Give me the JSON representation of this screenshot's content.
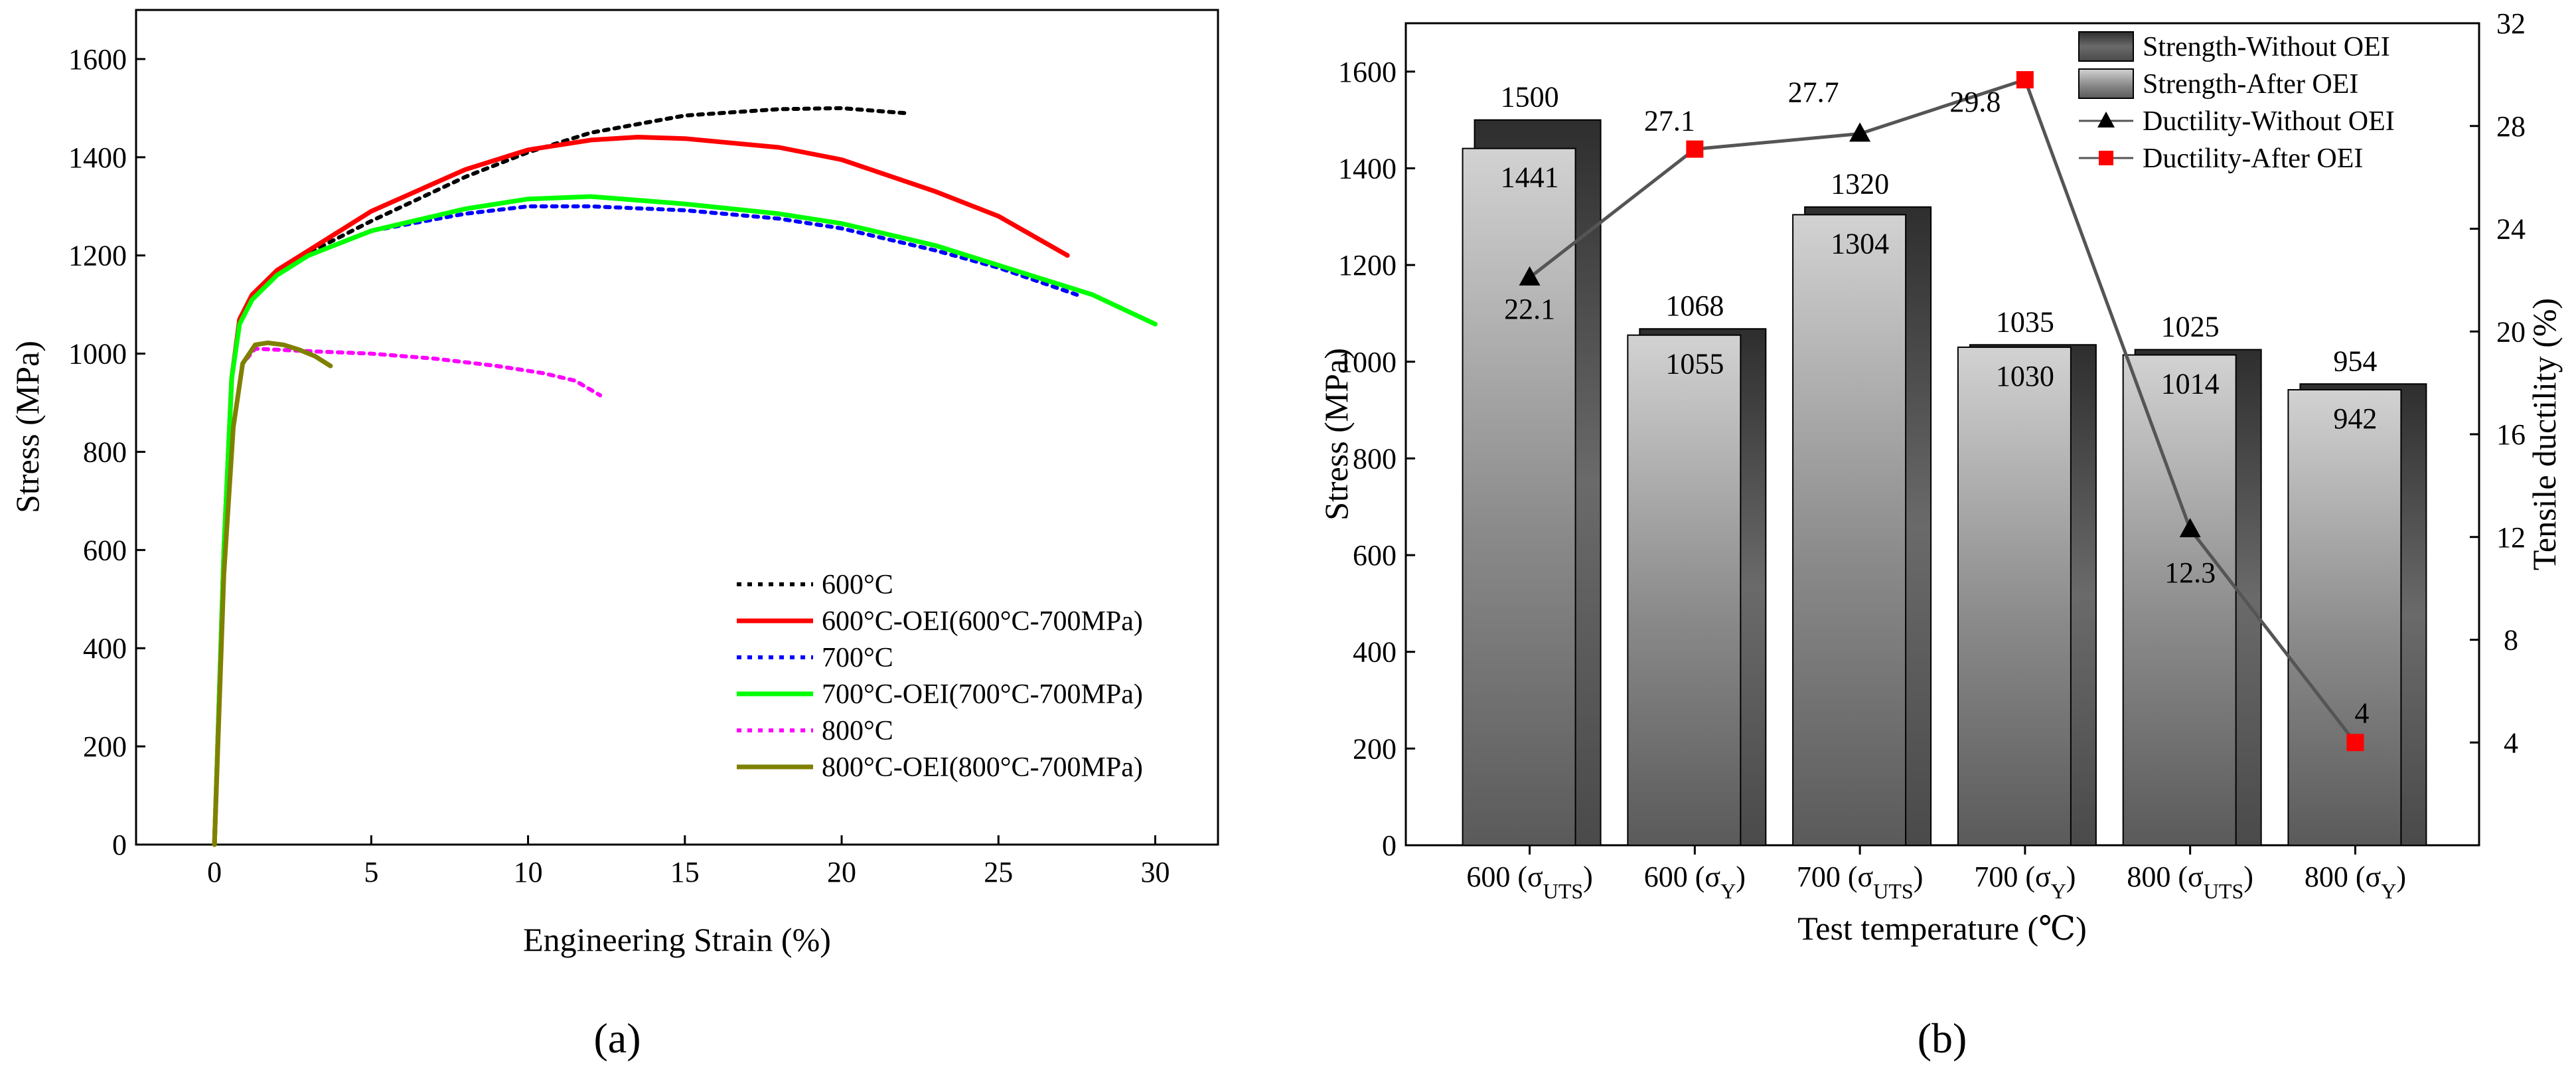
{
  "chart_data": [
    {
      "panel": "a",
      "type": "line",
      "panel_label": "(a)",
      "xlabel": "Engineering Strain (%)",
      "ylabel": "Stress (MPa)",
      "xlim": [
        -2.5,
        32
      ],
      "ylim": [
        0,
        1700
      ],
      "xticks": [
        0,
        5,
        10,
        15,
        20,
        25,
        30
      ],
      "yticks": [
        0,
        200,
        400,
        600,
        800,
        1000,
        1200,
        1400,
        1600
      ],
      "grid": false,
      "legend_position": "bottom-right",
      "series": [
        {
          "name": "600°C",
          "color": "#000000",
          "style": "dotted",
          "points": [
            [
              0,
              0
            ],
            [
              0.3,
              600
            ],
            [
              0.55,
              950
            ],
            [
              0.8,
              1070
            ],
            [
              1.2,
              1120
            ],
            [
              2,
              1170
            ],
            [
              3,
              1205
            ],
            [
              5,
              1270
            ],
            [
              8,
              1360
            ],
            [
              10,
              1410
            ],
            [
              12,
              1450
            ],
            [
              15,
              1485
            ],
            [
              18,
              1498
            ],
            [
              20,
              1500
            ],
            [
              22,
              1490
            ]
          ]
        },
        {
          "name": "600°C-OEI(600°C-700MPa)",
          "color": "#ff0000",
          "style": "solid",
          "points": [
            [
              0,
              0
            ],
            [
              0.3,
              600
            ],
            [
              0.55,
              950
            ],
            [
              0.8,
              1070
            ],
            [
              1.2,
              1120
            ],
            [
              2,
              1170
            ],
            [
              3,
              1210
            ],
            [
              5,
              1290
            ],
            [
              8,
              1375
            ],
            [
              10,
              1415
            ],
            [
              12,
              1435
            ],
            [
              13.5,
              1441
            ],
            [
              15,
              1438
            ],
            [
              18,
              1420
            ],
            [
              20,
              1395
            ],
            [
              23,
              1330
            ],
            [
              25,
              1280
            ],
            [
              27.2,
              1200
            ]
          ]
        },
        {
          "name": "700°C",
          "color": "#0000ff",
          "style": "dotted",
          "points": [
            [
              0,
              0
            ],
            [
              0.3,
              600
            ],
            [
              0.55,
              950
            ],
            [
              0.8,
              1060
            ],
            [
              1.2,
              1110
            ],
            [
              2,
              1160
            ],
            [
              3,
              1200
            ],
            [
              5,
              1250
            ],
            [
              8,
              1285
            ],
            [
              10,
              1300
            ],
            [
              12,
              1300
            ],
            [
              15,
              1292
            ],
            [
              18,
              1275
            ],
            [
              20,
              1255
            ],
            [
              23,
              1210
            ],
            [
              25,
              1175
            ],
            [
              27.5,
              1120
            ]
          ]
        },
        {
          "name": "700°C-OEI(700°C-700MPa)",
          "color": "#00ff00",
          "style": "solid",
          "points": [
            [
              0,
              0
            ],
            [
              0.3,
              600
            ],
            [
              0.55,
              950
            ],
            [
              0.8,
              1060
            ],
            [
              1.2,
              1110
            ],
            [
              2,
              1160
            ],
            [
              3,
              1200
            ],
            [
              5,
              1250
            ],
            [
              8,
              1295
            ],
            [
              10,
              1315
            ],
            [
              12,
              1320
            ],
            [
              15,
              1305
            ],
            [
              18,
              1285
            ],
            [
              20,
              1265
            ],
            [
              23,
              1220
            ],
            [
              25,
              1180
            ],
            [
              28,
              1120
            ],
            [
              30,
              1060
            ]
          ]
        },
        {
          "name": "800°C",
          "color": "#ff00ff",
          "style": "dotted",
          "points": [
            [
              0,
              0
            ],
            [
              0.3,
              550
            ],
            [
              0.6,
              850
            ],
            [
              0.9,
              980
            ],
            [
              1.3,
              1010
            ],
            [
              2,
              1008
            ],
            [
              3,
              1005
            ],
            [
              5,
              1000
            ],
            [
              7,
              990
            ],
            [
              9,
              975
            ],
            [
              10.5,
              960
            ],
            [
              11.5,
              945
            ],
            [
              12.3,
              915
            ]
          ]
        },
        {
          "name": "800°C-OEI(800°C-700MPa)",
          "color": "#808000",
          "style": "solid",
          "points": [
            [
              0,
              0
            ],
            [
              0.3,
              550
            ],
            [
              0.6,
              850
            ],
            [
              0.9,
              980
            ],
            [
              1.3,
              1018
            ],
            [
              1.7,
              1022
            ],
            [
              2.2,
              1018
            ],
            [
              2.7,
              1008
            ],
            [
              3.2,
              995
            ],
            [
              3.7,
              975
            ]
          ]
        }
      ]
    },
    {
      "panel": "b",
      "type": "bar",
      "panel_label": "(b)",
      "xlabel": "Test temperature (℃)",
      "ylabel": "Stress (MPa)",
      "y2label": "Tensile ductility (%)",
      "ylim": [
        0,
        1700
      ],
      "y2lim": [
        0,
        32
      ],
      "yticks": [
        0,
        200,
        400,
        600,
        800,
        1000,
        1200,
        1400,
        1600
      ],
      "y2ticks": [
        4,
        8,
        12,
        16,
        20,
        24,
        28,
        32
      ],
      "categories": [
        {
          "base": "600 (σ",
          "sub": "UTS",
          "close": ")"
        },
        {
          "base": "600 (σ",
          "sub": "Y",
          "close": ")"
        },
        {
          "base": "700 (σ",
          "sub": "UTS",
          "close": ")"
        },
        {
          "base": "700 (σ",
          "sub": "Y",
          "close": ")"
        },
        {
          "base": "800 (σ",
          "sub": "UTS",
          "close": ")"
        },
        {
          "base": "800 (σ",
          "sub": "Y",
          "close": ")"
        }
      ],
      "legend_position": "top-right",
      "series": [
        {
          "name": "Strength-Without OEI",
          "kind": "bar",
          "values": [
            1500,
            1068,
            1320,
            1035,
            1025,
            954
          ],
          "color": "#3a3a3a"
        },
        {
          "name": "Strength-After OEI",
          "kind": "bar",
          "values": [
            1441,
            1055,
            1304,
            1030,
            1014,
            942
          ],
          "color": "#b5b5b5"
        },
        {
          "name": "Ductility-Without OEI",
          "kind": "line",
          "marker": "triangle",
          "axis": "right",
          "points": [
            [
              0,
              22.1
            ],
            [
              2,
              27.7
            ],
            [
              4,
              12.3
            ]
          ],
          "color": "#000000"
        },
        {
          "name": "Ductility-After OEI",
          "kind": "line",
          "marker": "square",
          "axis": "right",
          "points": [
            [
              1,
              27.1
            ],
            [
              3,
              29.8
            ],
            [
              5,
              4
            ]
          ],
          "color": "#ff0000"
        }
      ],
      "bar_labels": {
        "without": [
          "1500",
          "1068",
          "1320",
          "1035",
          "1025",
          "954"
        ],
        "after": [
          "1441",
          "1055",
          "1304",
          "1030",
          "1014",
          "942"
        ]
      },
      "ductility_labels": [
        "22.1",
        "27.1",
        "27.7",
        "29.8",
        "12.3",
        "4"
      ]
    }
  ]
}
